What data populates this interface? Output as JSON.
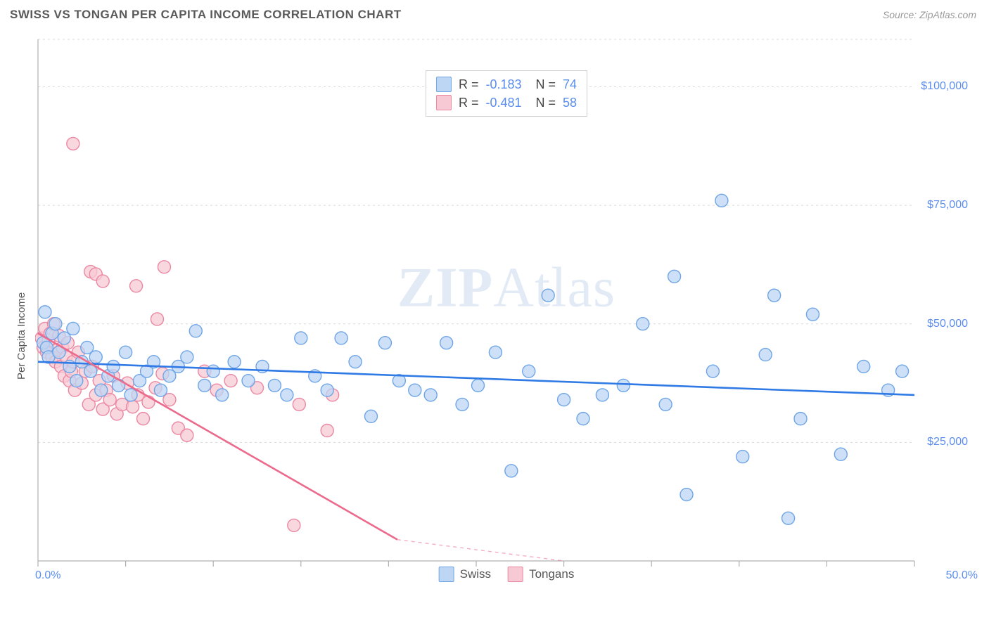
{
  "header": {
    "title": "SWISS VS TONGAN PER CAPITA INCOME CORRELATION CHART",
    "source": "Source: ZipAtlas.com"
  },
  "watermark": {
    "bold": "ZIP",
    "light": "Atlas"
  },
  "chart": {
    "type": "scatter",
    "yaxis_label": "Per Capita Income",
    "xlim": [
      0,
      50
    ],
    "ylim": [
      0,
      110000
    ],
    "xtick_labels": {
      "min_label": "0.0%",
      "max_label": "50.0%"
    },
    "xtick_positions": [
      0,
      5,
      10,
      15,
      20,
      25,
      30,
      35,
      40,
      45,
      50
    ],
    "ytick_positions": [
      25000,
      50000,
      75000,
      100000
    ],
    "ytick_labels": [
      "$25,000",
      "$50,000",
      "$75,000",
      "$100,000"
    ],
    "grid_color": "#d9d9d9",
    "grid_dash": "3,4",
    "axis_color": "#b0b0b0",
    "background_color": "#ffffff",
    "marker_radius": 9,
    "marker_stroke_width": 1.4,
    "line_width": 2.6,
    "series": [
      {
        "name": "Swiss",
        "fill_color": "#bcd6f4",
        "stroke_color": "#6fa5e6",
        "line_color": "#2f7ae5",
        "R": "-0.183",
        "N": "74",
        "regression": {
          "x1": 0,
          "y1": 42000,
          "x2": 50,
          "y2": 35000,
          "dashed_from_x": 50
        },
        "points": [
          [
            0.3,
            46000
          ],
          [
            0.4,
            52500
          ],
          [
            0.5,
            45000
          ],
          [
            0.6,
            43000
          ],
          [
            0.8,
            48000
          ],
          [
            1.0,
            50000
          ],
          [
            1.2,
            44000
          ],
          [
            1.5,
            47000
          ],
          [
            1.8,
            41000
          ],
          [
            2.0,
            49000
          ],
          [
            2.2,
            38000
          ],
          [
            2.5,
            42000
          ],
          [
            2.8,
            45000
          ],
          [
            3.0,
            40000
          ],
          [
            3.3,
            43000
          ],
          [
            3.6,
            36000
          ],
          [
            4.0,
            39000
          ],
          [
            4.3,
            41000
          ],
          [
            4.6,
            37000
          ],
          [
            5.0,
            44000
          ],
          [
            5.3,
            35000
          ],
          [
            5.8,
            38000
          ],
          [
            6.2,
            40000
          ],
          [
            6.6,
            42000
          ],
          [
            7.0,
            36000
          ],
          [
            7.5,
            39000
          ],
          [
            8.0,
            41000
          ],
          [
            8.5,
            43000
          ],
          [
            9.0,
            48500
          ],
          [
            9.5,
            37000
          ],
          [
            10.0,
            40000
          ],
          [
            10.5,
            35000
          ],
          [
            11.2,
            42000
          ],
          [
            12.0,
            38000
          ],
          [
            12.8,
            41000
          ],
          [
            13.5,
            37000
          ],
          [
            14.2,
            35000
          ],
          [
            15.0,
            47000
          ],
          [
            15.8,
            39000
          ],
          [
            16.5,
            36000
          ],
          [
            17.3,
            47000
          ],
          [
            18.1,
            42000
          ],
          [
            19.0,
            30500
          ],
          [
            19.8,
            46000
          ],
          [
            20.6,
            38000
          ],
          [
            21.5,
            36000
          ],
          [
            22.4,
            35000
          ],
          [
            23.3,
            46000
          ],
          [
            24.2,
            33000
          ],
          [
            25.1,
            37000
          ],
          [
            26.1,
            44000
          ],
          [
            27.0,
            19000
          ],
          [
            28.0,
            40000
          ],
          [
            29.1,
            56000
          ],
          [
            30.0,
            34000
          ],
          [
            31.1,
            30000
          ],
          [
            32.2,
            35000
          ],
          [
            33.4,
            37000
          ],
          [
            34.5,
            50000
          ],
          [
            35.8,
            33000
          ],
          [
            36.3,
            60000
          ],
          [
            37.0,
            14000
          ],
          [
            38.5,
            40000
          ],
          [
            39.0,
            76000
          ],
          [
            40.2,
            22000
          ],
          [
            41.5,
            43500
          ],
          [
            42.0,
            56000
          ],
          [
            42.8,
            9000
          ],
          [
            43.5,
            30000
          ],
          [
            44.2,
            52000
          ],
          [
            45.8,
            22500
          ],
          [
            47.1,
            41000
          ],
          [
            48.5,
            36000
          ],
          [
            49.3,
            40000
          ]
        ]
      },
      {
        "name": "Tongans",
        "fill_color": "#f7c9d4",
        "stroke_color": "#ec87a2",
        "line_color": "#ec6a8c",
        "R": "-0.481",
        "N": "58",
        "regression": {
          "x1": 0,
          "y1": 48000,
          "x2": 20.5,
          "y2": 4500,
          "dashed_from_x": 20.5,
          "dash_x2": 30,
          "dash_y2": -16000
        },
        "points": [
          [
            0.2,
            47000
          ],
          [
            0.3,
            45000
          ],
          [
            0.4,
            49000
          ],
          [
            0.5,
            44000
          ],
          [
            0.6,
            46500
          ],
          [
            0.7,
            48000
          ],
          [
            0.8,
            43000
          ],
          [
            0.9,
            50000
          ],
          [
            1.0,
            42000
          ],
          [
            1.1,
            44500
          ],
          [
            1.2,
            47500
          ],
          [
            1.3,
            41000
          ],
          [
            1.4,
            45000
          ],
          [
            1.5,
            39000
          ],
          [
            1.6,
            43000
          ],
          [
            1.7,
            46000
          ],
          [
            1.8,
            38000
          ],
          [
            1.9,
            40000
          ],
          [
            2.0,
            42000
          ],
          [
            2.1,
            36000
          ],
          [
            2.3,
            44000
          ],
          [
            2.5,
            37500
          ],
          [
            2.7,
            40000
          ],
          [
            2.9,
            33000
          ],
          [
            3.1,
            41000
          ],
          [
            3.3,
            35000
          ],
          [
            3.5,
            38000
          ],
          [
            3.7,
            32000
          ],
          [
            3.9,
            36000
          ],
          [
            4.1,
            34000
          ],
          [
            4.3,
            39000
          ],
          [
            4.5,
            31000
          ],
          [
            4.8,
            33000
          ],
          [
            5.1,
            37500
          ],
          [
            5.4,
            32500
          ],
          [
            5.7,
            35000
          ],
          [
            6.0,
            30000
          ],
          [
            6.3,
            33500
          ],
          [
            6.7,
            36500
          ],
          [
            7.1,
            39500
          ],
          [
            7.5,
            34000
          ],
          [
            2.0,
            88000
          ],
          [
            3.0,
            61000
          ],
          [
            3.3,
            60500
          ],
          [
            3.7,
            59000
          ],
          [
            5.6,
            58000
          ],
          [
            7.2,
            62000
          ],
          [
            6.8,
            51000
          ],
          [
            8.0,
            28000
          ],
          [
            8.5,
            26500
          ],
          [
            9.5,
            40000
          ],
          [
            10.2,
            36000
          ],
          [
            11.0,
            38000
          ],
          [
            12.5,
            36500
          ],
          [
            14.6,
            7500
          ],
          [
            14.9,
            33000
          ],
          [
            16.5,
            27500
          ],
          [
            16.8,
            35000
          ]
        ]
      }
    ]
  },
  "legend_bottom": [
    {
      "label": "Swiss",
      "fill": "#bcd6f4",
      "stroke": "#6fa5e6"
    },
    {
      "label": "Tongans",
      "fill": "#f7c9d4",
      "stroke": "#ec87a2"
    }
  ]
}
